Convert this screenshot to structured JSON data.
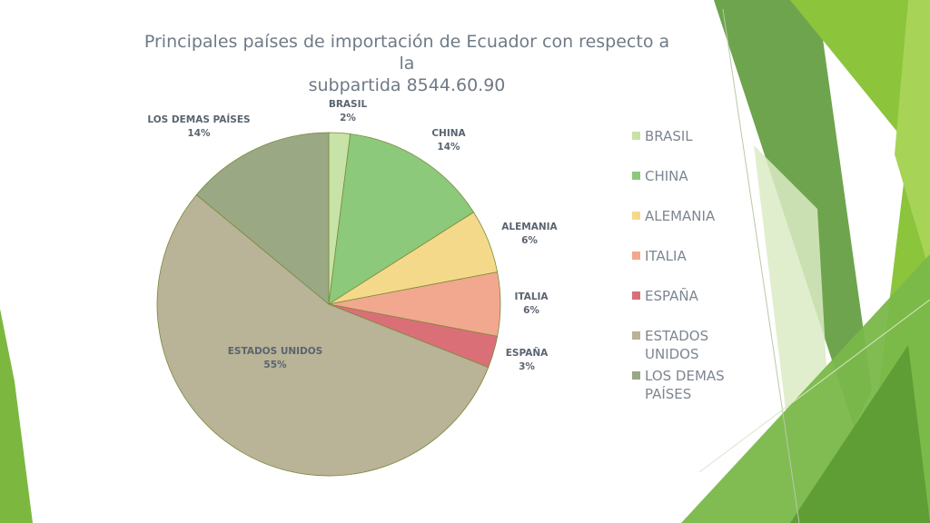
{
  "slide": {
    "title_line1": "Principales países de importación de Ecuador con respecto a la",
    "title_line2": "subpartida 8544.60.90"
  },
  "chart_data": {
    "type": "pie",
    "title": "Principales países de importación de Ecuador con respecto a la subpartida 8544.60.90",
    "legend_position": "right",
    "slices": [
      {
        "name": "BRASIL",
        "value": 2,
        "label": "2%",
        "color": "#c7e3a7"
      },
      {
        "name": "CHINA",
        "value": 14,
        "label": "14%",
        "color": "#8cc97a"
      },
      {
        "name": "ALEMANIA",
        "value": 6,
        "label": "6%",
        "color": "#f5d98a"
      },
      {
        "name": "ITALIA",
        "value": 6,
        "label": "6%",
        "color": "#f2a88e"
      },
      {
        "name": "ESPAÑA",
        "value": 3,
        "label": "3%",
        "color": "#db6f78"
      },
      {
        "name": "ESTADOS UNIDOS",
        "value": 55,
        "label": "55%",
        "color": "#b9b397"
      },
      {
        "name": "LOS DEMAS PAÍSES",
        "value": 14,
        "label": "14%",
        "color": "#9aa884"
      }
    ],
    "data_labels": [
      {
        "line1": "BRASIL",
        "line2": "2%"
      },
      {
        "line1": "CHINA",
        "line2": "14%"
      },
      {
        "line1": "ALEMANIA",
        "line2": "6%"
      },
      {
        "line1": "ITALIA",
        "line2": "6%"
      },
      {
        "line1": "ESPAÑA",
        "line2": "3%"
      },
      {
        "line1": "ESTADOS UNIDOS",
        "line2": "55%"
      },
      {
        "line1": "LOS DEMAS PAÍSES",
        "line2": "14%"
      }
    ],
    "legend": [
      {
        "lines": [
          "BRASIL"
        ]
      },
      {
        "lines": [
          "CHINA"
        ]
      },
      {
        "lines": [
          "ALEMANIA"
        ]
      },
      {
        "lines": [
          "ITALIA"
        ]
      },
      {
        "lines": [
          "ESPAÑA"
        ]
      },
      {
        "lines": [
          "ESTADOS",
          "UNIDOS"
        ]
      },
      {
        "lines": [
          "LOS DEMAS",
          "PAÍSES"
        ]
      }
    ]
  },
  "theme": {
    "accent_dark": "#4f8f2e",
    "accent_mid": "#7cb83f",
    "accent_light": "#cfe7a8",
    "text_color": "#6f7a86"
  }
}
